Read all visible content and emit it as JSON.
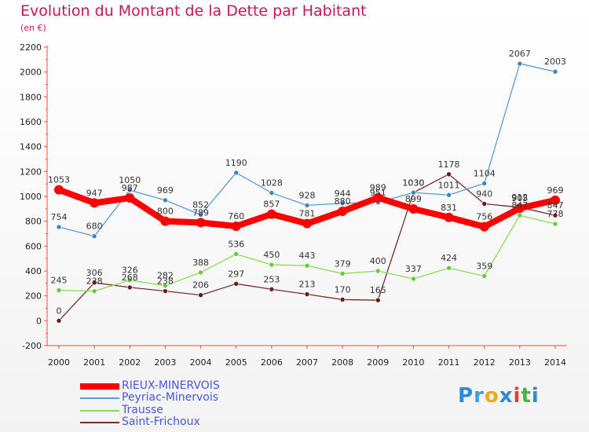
{
  "title": "Evolution du Montant de la Dette par Habitant",
  "subtitle": "(en €)",
  "logo": {
    "letters": [
      "P",
      "r",
      "o",
      "x",
      "i",
      "t",
      "i"
    ],
    "colors": [
      "#2e8bd6",
      "#3aa0e0",
      "#f0a818",
      "#2e8bd6",
      "#e8402a",
      "#4cae4c",
      "#2e8bd6"
    ]
  },
  "chart_data": {
    "type": "line",
    "title": "Evolution du Montant de la Dette par Habitant",
    "subtitle": "(en €)",
    "xlabel": "",
    "ylabel": "",
    "x": [
      "2000",
      "2001",
      "2002",
      "2003",
      "2004",
      "2005",
      "2006",
      "2007",
      "2008",
      "2009",
      "2010",
      "2011",
      "2012",
      "2013",
      "2014"
    ],
    "ylim": [
      -200,
      2200
    ],
    "yticks": [
      -200,
      0,
      200,
      400,
      600,
      800,
      1000,
      1200,
      1400,
      1600,
      1800,
      2000,
      2200
    ],
    "grid": false,
    "legend": "bottom-left",
    "series": [
      {
        "name": "RIEUX-MINERVOIS",
        "color": "#ff0000",
        "values": [
          1053,
          947,
          987,
          800,
          789,
          760,
          857,
          781,
          880,
          989,
          899,
          831,
          756,
          905,
          969
        ]
      },
      {
        "name": "Peyriac-Minervois",
        "color": "#5b9bd5",
        "values": [
          754,
          680,
          1050,
          969,
          852,
          1190,
          1028,
          928,
          944,
          951,
          1030,
          1011,
          1104,
          2067,
          2003
        ]
      },
      {
        "name": "Trausse",
        "color": "#88dd55",
        "values": [
          245,
          238,
          326,
          282,
          388,
          536,
          450,
          443,
          379,
          400,
          337,
          424,
          359,
          847,
          778
        ]
      },
      {
        "name": "Saint-Frichoux",
        "color": "#7a2c2c",
        "values": [
          0,
          306,
          268,
          238,
          206,
          297,
          253,
          213,
          170,
          165,
          1030,
          1178,
          940,
          912,
          847
        ]
      }
    ]
  }
}
